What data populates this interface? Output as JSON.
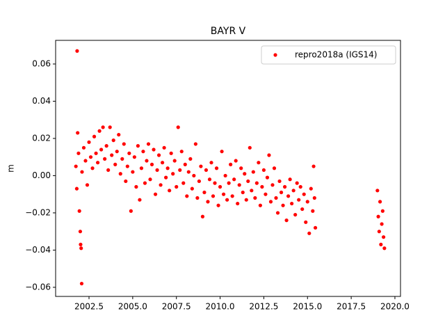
{
  "chart_data": {
    "type": "scatter",
    "title": "BAYR V",
    "y_label": "m",
    "xlim": [
      2000.59,
      2020.32
    ],
    "ylim": [
      -0.0649,
      0.0727
    ],
    "xticks": [
      {
        "value": 2002.5,
        "label": "2002.5"
      },
      {
        "value": 2005.0,
        "label": "2005.0"
      },
      {
        "value": 2007.5,
        "label": "2007.5"
      },
      {
        "value": 2010.0,
        "label": "2010.0"
      },
      {
        "value": 2012.5,
        "label": "2012.5"
      },
      {
        "value": 2015.0,
        "label": "2015.0"
      },
      {
        "value": 2017.5,
        "label": "2017.5"
      },
      {
        "value": 2020.0,
        "label": "2020.0"
      }
    ],
    "yticks": [
      {
        "value": -0.06,
        "label": "−0.06"
      },
      {
        "value": -0.04,
        "label": "−0.04"
      },
      {
        "value": -0.02,
        "label": "−0.02"
      },
      {
        "value": 0,
        "label": "0.00"
      },
      {
        "value": 0.02,
        "label": "0.02"
      },
      {
        "value": 0.04,
        "label": "0.04"
      },
      {
        "value": 0.06,
        "label": "0.06"
      }
    ],
    "grid": false,
    "legend": "upper right",
    "series": [
      {
        "name": "repro2018a (IGS14)",
        "color": "#ff0000",
        "x": [
          2001.75,
          2001.8,
          2001.82,
          2001.85,
          2001.9,
          2001.95,
          2002.0,
          2002.02,
          2002.05,
          2002.08,
          2002.1,
          2002.2,
          2002.3,
          2002.4,
          2002.5,
          2002.6,
          2002.7,
          2002.8,
          2002.9,
          2003.0,
          2003.1,
          2003.2,
          2003.3,
          2003.4,
          2003.5,
          2003.6,
          2003.7,
          2003.8,
          2003.9,
          2004.0,
          2004.1,
          2004.2,
          2004.3,
          2004.4,
          2004.5,
          2004.6,
          2004.7,
          2004.8,
          2004.9,
          2005.0,
          2005.1,
          2005.2,
          2005.3,
          2005.4,
          2005.5,
          2005.6,
          2005.7,
          2005.8,
          2005.9,
          2006.0,
          2006.1,
          2006.2,
          2006.3,
          2006.4,
          2006.5,
          2006.6,
          2006.7,
          2006.8,
          2006.9,
          2007.0,
          2007.1,
          2007.2,
          2007.3,
          2007.4,
          2007.5,
          2007.6,
          2007.7,
          2007.8,
          2007.9,
          2008.0,
          2008.1,
          2008.2,
          2008.3,
          2008.4,
          2008.5,
          2008.6,
          2008.7,
          2008.8,
          2008.9,
          2009.0,
          2009.1,
          2009.2,
          2009.3,
          2009.4,
          2009.5,
          2009.6,
          2009.7,
          2009.8,
          2009.9,
          2010.0,
          2010.1,
          2010.2,
          2010.3,
          2010.4,
          2010.5,
          2010.6,
          2010.7,
          2010.8,
          2010.9,
          2011.0,
          2011.1,
          2011.2,
          2011.3,
          2011.4,
          2011.5,
          2011.6,
          2011.7,
          2011.8,
          2011.9,
          2012.0,
          2012.1,
          2012.2,
          2012.3,
          2012.4,
          2012.5,
          2012.6,
          2012.7,
          2012.8,
          2012.9,
          2013.0,
          2013.1,
          2013.2,
          2013.3,
          2013.4,
          2013.5,
          2013.6,
          2013.7,
          2013.8,
          2013.9,
          2014.0,
          2014.1,
          2014.2,
          2014.3,
          2014.4,
          2014.5,
          2014.6,
          2014.7,
          2014.8,
          2014.9,
          2015.0,
          2015.1,
          2015.2,
          2015.3,
          2015.35,
          2015.4,
          2015.45,
          2019.0,
          2019.05,
          2019.1,
          2019.15,
          2019.2,
          2019.25,
          2019.3,
          2019.35,
          2019.4
        ],
        "values": [
          0.005,
          -0.007,
          0.067,
          0.023,
          0.012,
          -0.019,
          -0.03,
          -0.037,
          -0.039,
          -0.058,
          0.002,
          0.015,
          0.008,
          -0.005,
          0.018,
          0.01,
          0.004,
          0.021,
          0.012,
          0.007,
          0.024,
          0.014,
          0.026,
          0.009,
          0.016,
          0.003,
          0.026,
          0.011,
          0.019,
          0.006,
          0.013,
          0.022,
          0.001,
          0.009,
          0.017,
          -0.003,
          0.005,
          0.012,
          -0.019,
          0.002,
          0.01,
          -0.006,
          0.016,
          -0.013,
          0.004,
          0.013,
          -0.004,
          0.008,
          0.017,
          -0.002,
          0.006,
          0.014,
          -0.01,
          0.003,
          0.011,
          -0.005,
          0.007,
          0.015,
          -0.001,
          0.004,
          -0.008,
          0.012,
          0.001,
          0.008,
          -0.006,
          0.026,
          0.003,
          0.013,
          -0.004,
          0.006,
          -0.011,
          0.002,
          0.009,
          -0.007,
          0.0,
          0.017,
          -0.012,
          -0.003,
          0.005,
          -0.022,
          -0.009,
          0.003,
          -0.014,
          -0.002,
          0.007,
          -0.011,
          -0.004,
          0.004,
          -0.016,
          -0.006,
          0.013,
          -0.01,
          0.0,
          -0.013,
          -0.004,
          0.006,
          -0.011,
          -0.002,
          0.008,
          -0.015,
          -0.005,
          0.004,
          -0.009,
          0.001,
          -0.013,
          -0.003,
          0.015,
          -0.008,
          0.002,
          -0.012,
          -0.004,
          0.007,
          -0.016,
          -0.006,
          0.003,
          -0.01,
          -0.001,
          0.011,
          -0.014,
          -0.005,
          0.004,
          -0.012,
          -0.02,
          -0.003,
          -0.009,
          -0.016,
          -0.006,
          -0.024,
          -0.011,
          -0.002,
          -0.015,
          -0.008,
          -0.021,
          -0.004,
          -0.013,
          -0.006,
          -0.018,
          -0.01,
          -0.025,
          -0.014,
          -0.031,
          -0.007,
          -0.019,
          0.005,
          -0.012,
          -0.028,
          -0.008,
          -0.022,
          -0.03,
          -0.014,
          -0.037,
          -0.026,
          -0.019,
          -0.033,
          -0.039
        ]
      }
    ]
  }
}
